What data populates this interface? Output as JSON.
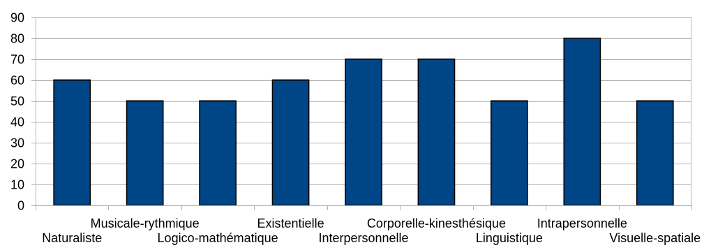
{
  "chart_data": {
    "type": "bar",
    "categories": [
      "Naturaliste",
      "Musicale-rythmique",
      "Logico-mathématique",
      "Existentielle",
      "Interpersonnelle",
      "Corporelle-kinesthésique",
      "Linguistique",
      "Intrapersonnelle",
      "Visuelle-spatiale"
    ],
    "values": [
      60,
      50,
      50,
      60,
      70,
      70,
      50,
      80,
      50
    ],
    "title": "",
    "xlabel": "",
    "ylabel": "",
    "ylim": [
      0,
      90
    ],
    "yticks": [
      0,
      10,
      20,
      30,
      40,
      50,
      60,
      70,
      80,
      90
    ],
    "grid": "horizontal",
    "legend": "none",
    "colors": {
      "bar": "#004586",
      "bar_stroke": "#000000",
      "grid": "#b3b3b3",
      "axis": "#b3b3b3"
    }
  }
}
